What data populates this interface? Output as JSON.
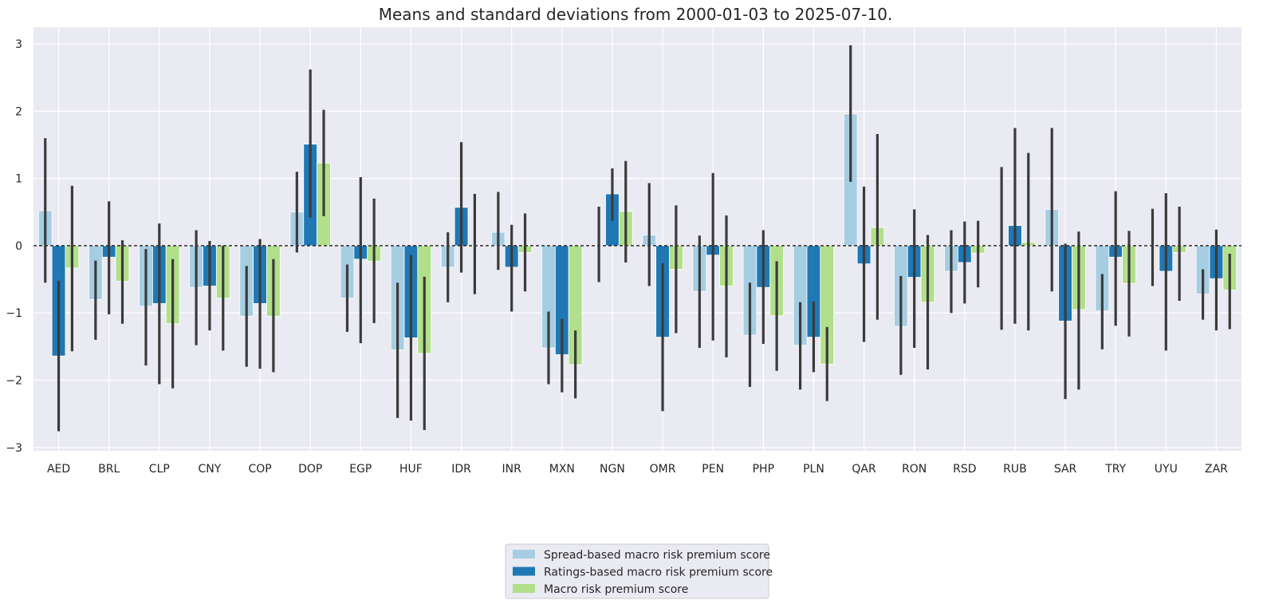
{
  "chart_data": {
    "type": "bar",
    "title": "Means and standard deviations from 2000-01-03 to 2025-07-10.",
    "xlabel": "",
    "ylabel": "",
    "ylim": [
      -3.05,
      3.25
    ],
    "yticks": [
      -3,
      -2,
      -1,
      0,
      1,
      2,
      3
    ],
    "ytick_labels": [
      "−3",
      "−2",
      "−1",
      "0",
      "1",
      "2",
      "3"
    ],
    "grid": true,
    "legend_position": "bottom-center",
    "reference_line": 0,
    "categories": [
      "AED",
      "BRL",
      "CLP",
      "CNY",
      "COP",
      "DOP",
      "EGP",
      "HUF",
      "IDR",
      "INR",
      "MXN",
      "NGN",
      "OMR",
      "PEN",
      "PHP",
      "PLN",
      "QAR",
      "RON",
      "RSD",
      "RUB",
      "SAR",
      "TRY",
      "UYU",
      "ZAR"
    ],
    "series": [
      {
        "name": "Spread-based macro risk premium score",
        "color": "#a6cee3",
        "values": [
          0.52,
          -0.8,
          -0.9,
          -0.62,
          -1.05,
          0.5,
          -0.78,
          -1.55,
          -0.32,
          0.2,
          -1.52,
          0.0,
          0.16,
          -0.68,
          -1.33,
          -1.48,
          1.96,
          -1.2,
          -0.38,
          0.0,
          0.54,
          -0.97,
          0.0,
          -0.72
        ],
        "err_low": [
          -0.55,
          -1.4,
          -1.78,
          -1.48,
          -1.8,
          -0.1,
          -1.28,
          -2.56,
          -0.84,
          -0.36,
          -2.06,
          -0.54,
          -0.6,
          -1.52,
          -2.1,
          -2.14,
          0.95,
          -1.92,
          -1.0,
          -1.25,
          -0.68,
          -1.54,
          -0.6,
          -1.1
        ],
        "err_high": [
          1.6,
          -0.22,
          -0.05,
          0.23,
          -0.3,
          1.1,
          -0.28,
          -0.55,
          0.2,
          0.8,
          -0.98,
          0.58,
          0.93,
          0.15,
          -0.55,
          -0.84,
          2.98,
          -0.45,
          0.23,
          1.17,
          1.75,
          -0.42,
          0.55,
          -0.35
        ]
      },
      {
        "name": "Ratings-based macro risk premium score",
        "color": "#1f78b4",
        "values": [
          -1.64,
          -0.17,
          -0.86,
          -0.6,
          -0.86,
          1.51,
          -0.2,
          -1.37,
          0.57,
          -0.32,
          -1.62,
          0.77,
          -1.36,
          -0.14,
          -0.62,
          -1.36,
          -0.27,
          -0.47,
          -0.25,
          0.3,
          -1.12,
          -0.17,
          -0.38,
          -0.49
        ],
        "err_low": [
          -2.76,
          -1.02,
          -2.06,
          -1.26,
          -1.83,
          0.42,
          -1.45,
          -2.6,
          -0.4,
          -0.98,
          -2.18,
          0.37,
          -2.46,
          -1.41,
          -1.46,
          -1.88,
          -1.43,
          -1.52,
          -0.86,
          -1.16,
          -2.28,
          -1.19,
          -1.56,
          -1.26
        ],
        "err_high": [
          -0.52,
          0.66,
          0.33,
          0.07,
          0.1,
          2.62,
          1.02,
          -0.14,
          1.54,
          0.31,
          -1.09,
          1.15,
          -0.26,
          1.08,
          0.23,
          -0.83,
          0.88,
          0.54,
          0.36,
          1.75,
          0.03,
          0.81,
          0.78,
          0.24
        ]
      },
      {
        "name": "Macro risk premium score",
        "color": "#b2df8a",
        "values": [
          -0.33,
          -0.53,
          -1.16,
          -0.78,
          -1.05,
          1.23,
          -0.23,
          -1.6,
          0.0,
          -0.1,
          -1.77,
          0.51,
          -0.35,
          -0.6,
          -1.04,
          -1.76,
          0.27,
          -0.84,
          -0.11,
          0.05,
          -0.95,
          -0.56,
          -0.1,
          -0.66
        ],
        "err_low": [
          -1.57,
          -1.16,
          -2.12,
          -1.56,
          -1.88,
          0.44,
          -1.15,
          -2.74,
          -0.72,
          -0.68,
          -2.27,
          -0.25,
          -1.3,
          -1.66,
          -1.86,
          -2.31,
          -1.1,
          -1.84,
          -0.62,
          -1.26,
          -2.14,
          -1.35,
          -0.82,
          -1.24
        ],
        "err_high": [
          0.89,
          0.08,
          -0.2,
          0.0,
          -0.2,
          2.02,
          0.7,
          -0.46,
          0.77,
          0.48,
          -1.26,
          1.26,
          0.6,
          0.45,
          -0.23,
          -1.21,
          1.66,
          0.16,
          0.37,
          1.38,
          0.21,
          0.22,
          0.58,
          -0.12
        ]
      }
    ]
  },
  "colors": {
    "plot_background": "#eaeaf2",
    "grid": "#ffffff",
    "error_bar": "#3b3b3b",
    "reference_line": "#1a1a1a"
  }
}
